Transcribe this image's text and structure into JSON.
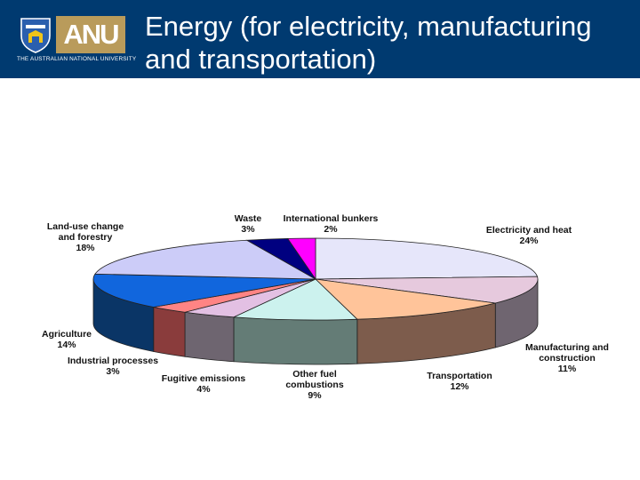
{
  "header": {
    "title_line1": "Energy (for electricity, manufacturing",
    "title_line2": "and transportation)",
    "logo_text": "ANU",
    "logo_subtext": "THE AUSTRALIAN NATIONAL UNIVERSITY",
    "background_color": "#003a70",
    "logo_color": "#b99b5b"
  },
  "chart_data": {
    "type": "pie",
    "style": "3d",
    "slices": [
      {
        "name": "Electricity and heat",
        "value": 24,
        "label": "24%",
        "color": "#e6e6fa",
        "side_color": "#e8cfdc"
      },
      {
        "name": "Manufacturing and construction",
        "value": 11,
        "label": "11%",
        "color": "#e6c9dd",
        "side_color": "#6f6570"
      },
      {
        "name": "Transportation",
        "value": 12,
        "label": "12%",
        "color": "#ffc49a",
        "side_color": "#7d5c4c"
      },
      {
        "name": "Other fuel combustions",
        "value": 9,
        "label": "9%",
        "color": "#ccf2ee",
        "side_color": "#647c76"
      },
      {
        "name": "Fugitive emissions",
        "value": 4,
        "label": "4%",
        "color": "#e3c0e3",
        "side_color": "#6e6570"
      },
      {
        "name": "Industrial processes",
        "value": 3,
        "label": "3%",
        "color": "#ff8484",
        "side_color": "#8a3c3c"
      },
      {
        "name": "Agriculture",
        "value": 14,
        "label": "14%",
        "color": "#1166dd",
        "side_color": "#0a3566"
      },
      {
        "name": "Land-use change and forestry",
        "value": 18,
        "label": "18%",
        "color": "#ccccf8",
        "side_color": "#5f5f80"
      },
      {
        "name": "Waste",
        "value": 3,
        "label": "3%",
        "color": "#000080",
        "side_color": "#000040"
      },
      {
        "name": "International bunkers",
        "value": 2,
        "label": "2%",
        "color": "#ff00ff",
        "side_color": "#800080"
      }
    ],
    "labels": [
      {
        "lines": [
          "Electricity and heat",
          "24%"
        ]
      },
      {
        "lines": [
          "Manufacturing and",
          "construction",
          "11%"
        ]
      },
      {
        "lines": [
          "Transportation",
          "12%"
        ]
      },
      {
        "lines": [
          "Other fuel",
          "combustions",
          "9%"
        ]
      },
      {
        "lines": [
          "Fugitive emissions",
          "4%"
        ]
      },
      {
        "lines": [
          "Industrial processes",
          "3%"
        ]
      },
      {
        "lines": [
          "Agriculture",
          "14%"
        ]
      },
      {
        "lines": [
          "Land-use change",
          "and forestry",
          "18%"
        ]
      },
      {
        "lines": [
          "Waste",
          "3%"
        ]
      },
      {
        "lines": [
          "International bunkers",
          "2%"
        ]
      }
    ]
  }
}
